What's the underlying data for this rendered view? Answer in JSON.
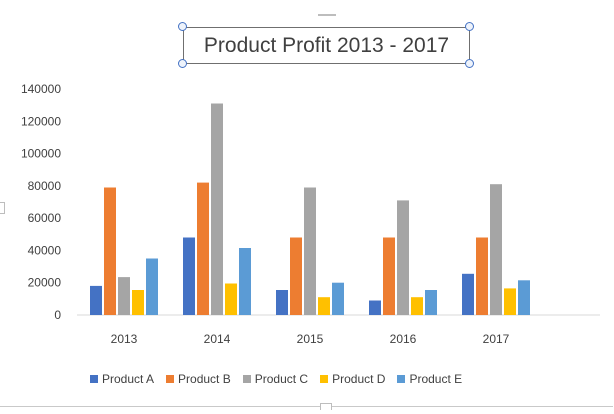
{
  "chart_data": {
    "type": "bar",
    "title": "Product Profit 2013 - 2017",
    "categories": [
      "2013",
      "2014",
      "2015",
      "2016",
      "2017"
    ],
    "series": [
      {
        "name": "Product A",
        "color": "#4472c4",
        "values": [
          18000,
          48000,
          15500,
          9000,
          25500
        ]
      },
      {
        "name": "Product B",
        "color": "#ed7d31",
        "values": [
          79000,
          82000,
          48000,
          48000,
          48000
        ]
      },
      {
        "name": "Product C",
        "color": "#a5a5a5",
        "values": [
          23500,
          131000,
          79000,
          71000,
          81000
        ]
      },
      {
        "name": "Product D",
        "color": "#ffc000",
        "values": [
          15500,
          19500,
          11000,
          11000,
          16500
        ]
      },
      {
        "name": "Product E",
        "color": "#5b9bd5",
        "values": [
          35000,
          41500,
          20000,
          15500,
          21500
        ]
      }
    ],
    "yticks": [
      "0",
      "20000",
      "40000",
      "60000",
      "80000",
      "100000",
      "120000",
      "140000"
    ],
    "ylim": [
      0,
      140000
    ],
    "grid": false,
    "legend_position": "bottom"
  }
}
